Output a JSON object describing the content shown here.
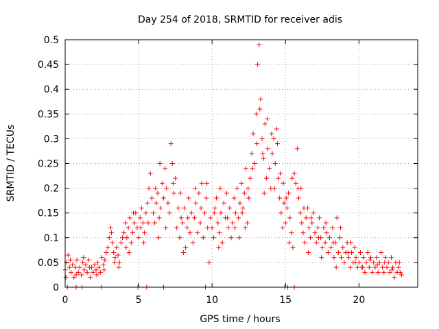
{
  "chart_data": {
    "type": "scatter",
    "title": "Day 254 of 2018, SRMTID for receiver adis",
    "xlabel": "GPS time / hours",
    "ylabel": "SRMTID / TECUs",
    "xlim": [
      0,
      24
    ],
    "ylim": [
      0,
      0.5
    ],
    "xticks": [
      0,
      5,
      10,
      15,
      20
    ],
    "xtick_labels": [
      "0",
      "5",
      "10",
      "15",
      "20"
    ],
    "yticks": [
      0,
      0.05,
      0.1,
      0.15,
      0.2,
      0.25,
      0.3,
      0.35,
      0.4,
      0.45,
      0.5
    ],
    "ytick_labels": [
      "0",
      "0.05",
      "0.1",
      "0.15",
      "0.2",
      "0.25",
      "0.3",
      "0.35",
      "0.4",
      "0.45",
      "0.5"
    ],
    "grid": true,
    "marker": "+",
    "color": "#ff0000",
    "series": [
      {
        "name": "SRMTID",
        "points": [
          [
            0.0,
            0.035
          ],
          [
            0.1,
            0.05
          ],
          [
            0.2,
            0.065
          ],
          [
            0.3,
            0.04
          ],
          [
            0.4,
            0.03
          ],
          [
            0.5,
            0.045
          ],
          [
            0.6,
            0.02
          ],
          [
            0.7,
            0.04
          ],
          [
            0.8,
            0.055
          ],
          [
            0.9,
            0.03
          ],
          [
            1.0,
            0.04
          ],
          [
            1.1,
            0.025
          ],
          [
            1.2,
            0.05
          ],
          [
            1.3,
            0.035
          ],
          [
            1.4,
            0.045
          ],
          [
            1.5,
            0.03
          ],
          [
            1.6,
            0.055
          ],
          [
            1.7,
            0.02
          ],
          [
            1.8,
            0.04
          ],
          [
            1.9,
            0.03
          ],
          [
            2.0,
            0.045
          ],
          [
            2.1,
            0.035
          ],
          [
            2.2,
            0.05
          ],
          [
            2.3,
            0.04
          ],
          [
            2.4,
            0.03
          ],
          [
            2.5,
            0.06
          ],
          [
            2.6,
            0.045
          ],
          [
            2.7,
            0.055
          ],
          [
            2.8,
            0.07
          ],
          [
            2.9,
            0.08
          ],
          [
            3.0,
            0.1
          ],
          [
            3.1,
            0.12
          ],
          [
            3.2,
            0.09
          ],
          [
            3.3,
            0.07
          ],
          [
            3.4,
            0.06
          ],
          [
            3.5,
            0.08
          ],
          [
            3.6,
            0.065
          ],
          [
            3.7,
            0.05
          ],
          [
            3.8,
            0.09
          ],
          [
            3.9,
            0.1
          ],
          [
            4.0,
            0.11
          ],
          [
            4.1,
            0.13
          ],
          [
            4.2,
            0.1
          ],
          [
            4.3,
            0.12
          ],
          [
            4.4,
            0.14
          ],
          [
            4.5,
            0.09
          ],
          [
            4.6,
            0.11
          ],
          [
            4.7,
            0.13
          ],
          [
            4.8,
            0.15
          ],
          [
            4.9,
            0.12
          ],
          [
            5.0,
            0.1
          ],
          [
            5.1,
            0.14
          ],
          [
            5.2,
            0.16
          ],
          [
            5.3,
            0.13
          ],
          [
            5.4,
            0.11
          ],
          [
            5.5,
            0.15
          ],
          [
            5.6,
            0.17
          ],
          [
            5.7,
            0.2
          ],
          [
            5.8,
            0.23
          ],
          [
            5.9,
            0.18
          ],
          [
            6.0,
            0.15
          ],
          [
            6.1,
            0.13
          ],
          [
            6.2,
            0.17
          ],
          [
            6.3,
            0.19
          ],
          [
            6.4,
            0.14
          ],
          [
            6.5,
            0.16
          ],
          [
            6.6,
            0.21
          ],
          [
            6.7,
            0.18
          ],
          [
            6.8,
            0.24
          ],
          [
            6.9,
            0.2
          ],
          [
            7.0,
            0.17
          ],
          [
            7.1,
            0.15
          ],
          [
            7.2,
            0.29
          ],
          [
            7.3,
            0.25
          ],
          [
            7.4,
            0.19
          ],
          [
            7.5,
            0.22
          ],
          [
            7.6,
            0.12
          ],
          [
            7.7,
            0.16
          ],
          [
            7.8,
            0.1
          ],
          [
            7.9,
            0.14
          ],
          [
            8.0,
            0.13
          ],
          [
            8.1,
            0.16
          ],
          [
            8.2,
            0.08
          ],
          [
            8.3,
            0.12
          ],
          [
            8.4,
            0.18
          ],
          [
            8.5,
            0.11
          ],
          [
            8.6,
            0.15
          ],
          [
            8.7,
            0.09
          ],
          [
            8.8,
            0.14
          ],
          [
            8.9,
            0.17
          ],
          [
            9.0,
            0.11
          ],
          [
            9.1,
            0.19
          ],
          [
            9.2,
            0.13
          ],
          [
            9.3,
            0.21
          ],
          [
            9.4,
            0.1
          ],
          [
            9.5,
            0.15
          ],
          [
            9.6,
            0.18
          ],
          [
            9.7,
            0.12
          ],
          [
            9.8,
            0.05
          ],
          [
            9.9,
            0.14
          ],
          [
            10.0,
            0.12
          ],
          [
            10.1,
            0.1
          ],
          [
            10.2,
            0.16
          ],
          [
            10.3,
            0.18
          ],
          [
            10.4,
            0.13
          ],
          [
            10.5,
            0.11
          ],
          [
            10.6,
            0.15
          ],
          [
            10.7,
            0.09
          ],
          [
            10.8,
            0.17
          ],
          [
            10.9,
            0.14
          ],
          [
            11.0,
            0.19
          ],
          [
            11.1,
            0.12
          ],
          [
            11.2,
            0.16
          ],
          [
            11.3,
            0.1
          ],
          [
            11.4,
            0.13
          ],
          [
            11.5,
            0.18
          ],
          [
            11.6,
            0.15
          ],
          [
            11.7,
            0.2
          ],
          [
            11.8,
            0.14
          ],
          [
            11.9,
            0.17
          ],
          [
            12.0,
            0.21
          ],
          [
            12.1,
            0.16
          ],
          [
            12.2,
            0.19
          ],
          [
            12.3,
            0.24
          ],
          [
            12.4,
            0.13
          ],
          [
            12.5,
            0.18
          ],
          [
            12.6,
            0.22
          ],
          [
            12.7,
            0.27
          ],
          [
            12.8,
            0.31
          ],
          [
            12.9,
            0.25
          ],
          [
            13.0,
            0.35
          ],
          [
            13.1,
            0.45
          ],
          [
            13.2,
            0.49
          ],
          [
            13.3,
            0.38
          ],
          [
            13.4,
            0.3
          ],
          [
            13.5,
            0.26
          ],
          [
            13.6,
            0.33
          ],
          [
            13.7,
            0.22
          ],
          [
            13.8,
            0.28
          ],
          [
            13.9,
            0.24
          ],
          [
            14.0,
            0.2
          ],
          [
            14.1,
            0.27
          ],
          [
            14.2,
            0.3
          ],
          [
            14.3,
            0.25
          ],
          [
            14.4,
            0.32
          ],
          [
            14.5,
            0.22
          ],
          [
            14.6,
            0.18
          ],
          [
            14.7,
            0.15
          ],
          [
            14.8,
            0.12
          ],
          [
            14.9,
            0.17
          ],
          [
            15.0,
            0.13
          ],
          [
            15.1,
            0.16
          ],
          [
            15.2,
            0.19
          ],
          [
            15.3,
            0.14
          ],
          [
            15.4,
            0.11
          ],
          [
            15.5,
            0.08
          ],
          [
            15.6,
            0.23
          ],
          [
            15.7,
            0.21
          ],
          [
            15.8,
            0.28
          ],
          [
            15.9,
            0.18
          ],
          [
            16.0,
            0.15
          ],
          [
            16.1,
            0.13
          ],
          [
            16.2,
            0.11
          ],
          [
            16.3,
            0.09
          ],
          [
            16.4,
            0.14
          ],
          [
            16.5,
            0.16
          ],
          [
            16.6,
            0.12
          ],
          [
            16.7,
            0.1
          ],
          [
            16.8,
            0.13
          ],
          [
            16.9,
            0.15
          ],
          [
            17.0,
            0.11
          ],
          [
            17.1,
            0.09
          ],
          [
            17.2,
            0.12
          ],
          [
            17.3,
            0.14
          ],
          [
            17.4,
            0.1
          ],
          [
            17.5,
            0.08
          ],
          [
            17.6,
            0.12
          ],
          [
            17.7,
            0.09
          ],
          [
            17.8,
            0.11
          ],
          [
            17.9,
            0.07
          ],
          [
            18.0,
            0.1
          ],
          [
            18.1,
            0.08
          ],
          [
            18.2,
            0.12
          ],
          [
            18.3,
            0.06
          ],
          [
            18.4,
            0.09
          ],
          [
            18.5,
            0.14
          ],
          [
            18.6,
            0.07
          ],
          [
            18.7,
            0.1
          ],
          [
            18.8,
            0.06
          ],
          [
            18.9,
            0.08
          ],
          [
            19.0,
            0.05
          ],
          [
            19.1,
            0.07
          ],
          [
            19.2,
            0.09
          ],
          [
            19.3,
            0.06
          ],
          [
            19.4,
            0.04
          ],
          [
            19.5,
            0.07
          ],
          [
            19.6,
            0.05
          ],
          [
            19.7,
            0.08
          ],
          [
            19.8,
            0.06
          ],
          [
            19.9,
            0.04
          ],
          [
            20.0,
            0.05
          ],
          [
            20.1,
            0.07
          ],
          [
            20.2,
            0.04
          ],
          [
            20.3,
            0.06
          ],
          [
            20.4,
            0.03
          ],
          [
            20.5,
            0.05
          ],
          [
            20.6,
            0.07
          ],
          [
            20.7,
            0.04
          ],
          [
            20.8,
            0.06
          ],
          [
            20.9,
            0.03
          ],
          [
            21.0,
            0.05
          ],
          [
            21.1,
            0.04
          ],
          [
            21.2,
            0.06
          ],
          [
            21.3,
            0.03
          ],
          [
            21.4,
            0.05
          ],
          [
            21.5,
            0.07
          ],
          [
            21.6,
            0.04
          ],
          [
            21.7,
            0.03
          ],
          [
            21.8,
            0.06
          ],
          [
            21.9,
            0.04
          ],
          [
            22.0,
            0.05
          ],
          [
            22.1,
            0.03
          ],
          [
            22.2,
            0.06
          ],
          [
            22.3,
            0.04
          ],
          [
            22.4,
            0.02
          ],
          [
            22.5,
            0.05
          ],
          [
            22.6,
            0.03
          ],
          [
            22.7,
            0.04
          ],
          [
            22.8,
            0.03
          ],
          [
            22.9,
            0.025
          ],
          [
            0.05,
            0.02
          ],
          [
            0.35,
            0.055
          ],
          [
            0.75,
            0.025
          ],
          [
            1.25,
            0.06
          ],
          [
            1.65,
            0.04
          ],
          [
            2.15,
            0.025
          ],
          [
            2.65,
            0.035
          ],
          [
            3.15,
            0.11
          ],
          [
            3.65,
            0.04
          ],
          [
            4.15,
            0.08
          ],
          [
            4.65,
            0.15
          ],
          [
            5.15,
            0.12
          ],
          [
            5.65,
            0.13
          ],
          [
            6.15,
            0.2
          ],
          [
            6.45,
            0.25
          ],
          [
            6.85,
            0.12
          ],
          [
            7.35,
            0.21
          ],
          [
            7.85,
            0.19
          ],
          [
            8.35,
            0.14
          ],
          [
            8.85,
            0.2
          ],
          [
            9.25,
            0.16
          ],
          [
            9.65,
            0.21
          ],
          [
            10.15,
            0.15
          ],
          [
            10.55,
            0.2
          ],
          [
            11.05,
            0.14
          ],
          [
            11.55,
            0.12
          ],
          [
            12.05,
            0.15
          ],
          [
            12.45,
            0.2
          ],
          [
            12.75,
            0.24
          ],
          [
            13.05,
            0.29
          ],
          [
            13.25,
            0.36
          ],
          [
            13.45,
            0.27
          ],
          [
            13.75,
            0.34
          ],
          [
            14.05,
            0.31
          ],
          [
            14.25,
            0.2
          ],
          [
            14.45,
            0.29
          ],
          [
            14.65,
            0.23
          ],
          [
            15.05,
            0.18
          ],
          [
            15.45,
            0.22
          ],
          [
            15.85,
            0.2
          ],
          [
            16.25,
            0.16
          ],
          [
            16.75,
            0.14
          ],
          [
            17.25,
            0.1
          ],
          [
            17.75,
            0.13
          ],
          [
            18.25,
            0.09
          ],
          [
            18.75,
            0.12
          ],
          [
            19.25,
            0.07
          ],
          [
            19.75,
            0.05
          ],
          [
            20.25,
            0.04
          ],
          [
            20.75,
            0.055
          ],
          [
            21.25,
            0.045
          ],
          [
            21.75,
            0.05
          ],
          [
            22.25,
            0.035
          ],
          [
            22.75,
            0.05
          ],
          [
            3.35,
            0.05
          ],
          [
            4.35,
            0.07
          ],
          [
            5.35,
            0.09
          ],
          [
            6.35,
            0.1
          ],
          [
            8.05,
            0.07
          ],
          [
            10.45,
            0.08
          ],
          [
            11.85,
            0.1
          ],
          [
            12.25,
            0.12
          ],
          [
            13.55,
            0.19
          ],
          [
            14.85,
            0.21
          ],
          [
            15.25,
            0.09
          ],
          [
            16.05,
            0.2
          ],
          [
            16.55,
            0.07
          ],
          [
            17.45,
            0.06
          ],
          [
            18.45,
            0.04
          ],
          [
            19.45,
            0.09
          ],
          [
            0.15,
            0.0
          ],
          [
            0.75,
            0.0
          ],
          [
            1.15,
            0.0
          ],
          [
            2.45,
            0.0
          ],
          [
            4.95,
            0.0
          ],
          [
            5.55,
            0.0
          ],
          [
            6.7,
            0.0
          ],
          [
            9.55,
            0.0
          ],
          [
            14.95,
            0.0
          ],
          [
            15.15,
            0.0
          ],
          [
            15.6,
            0.0
          ]
        ]
      }
    ]
  }
}
